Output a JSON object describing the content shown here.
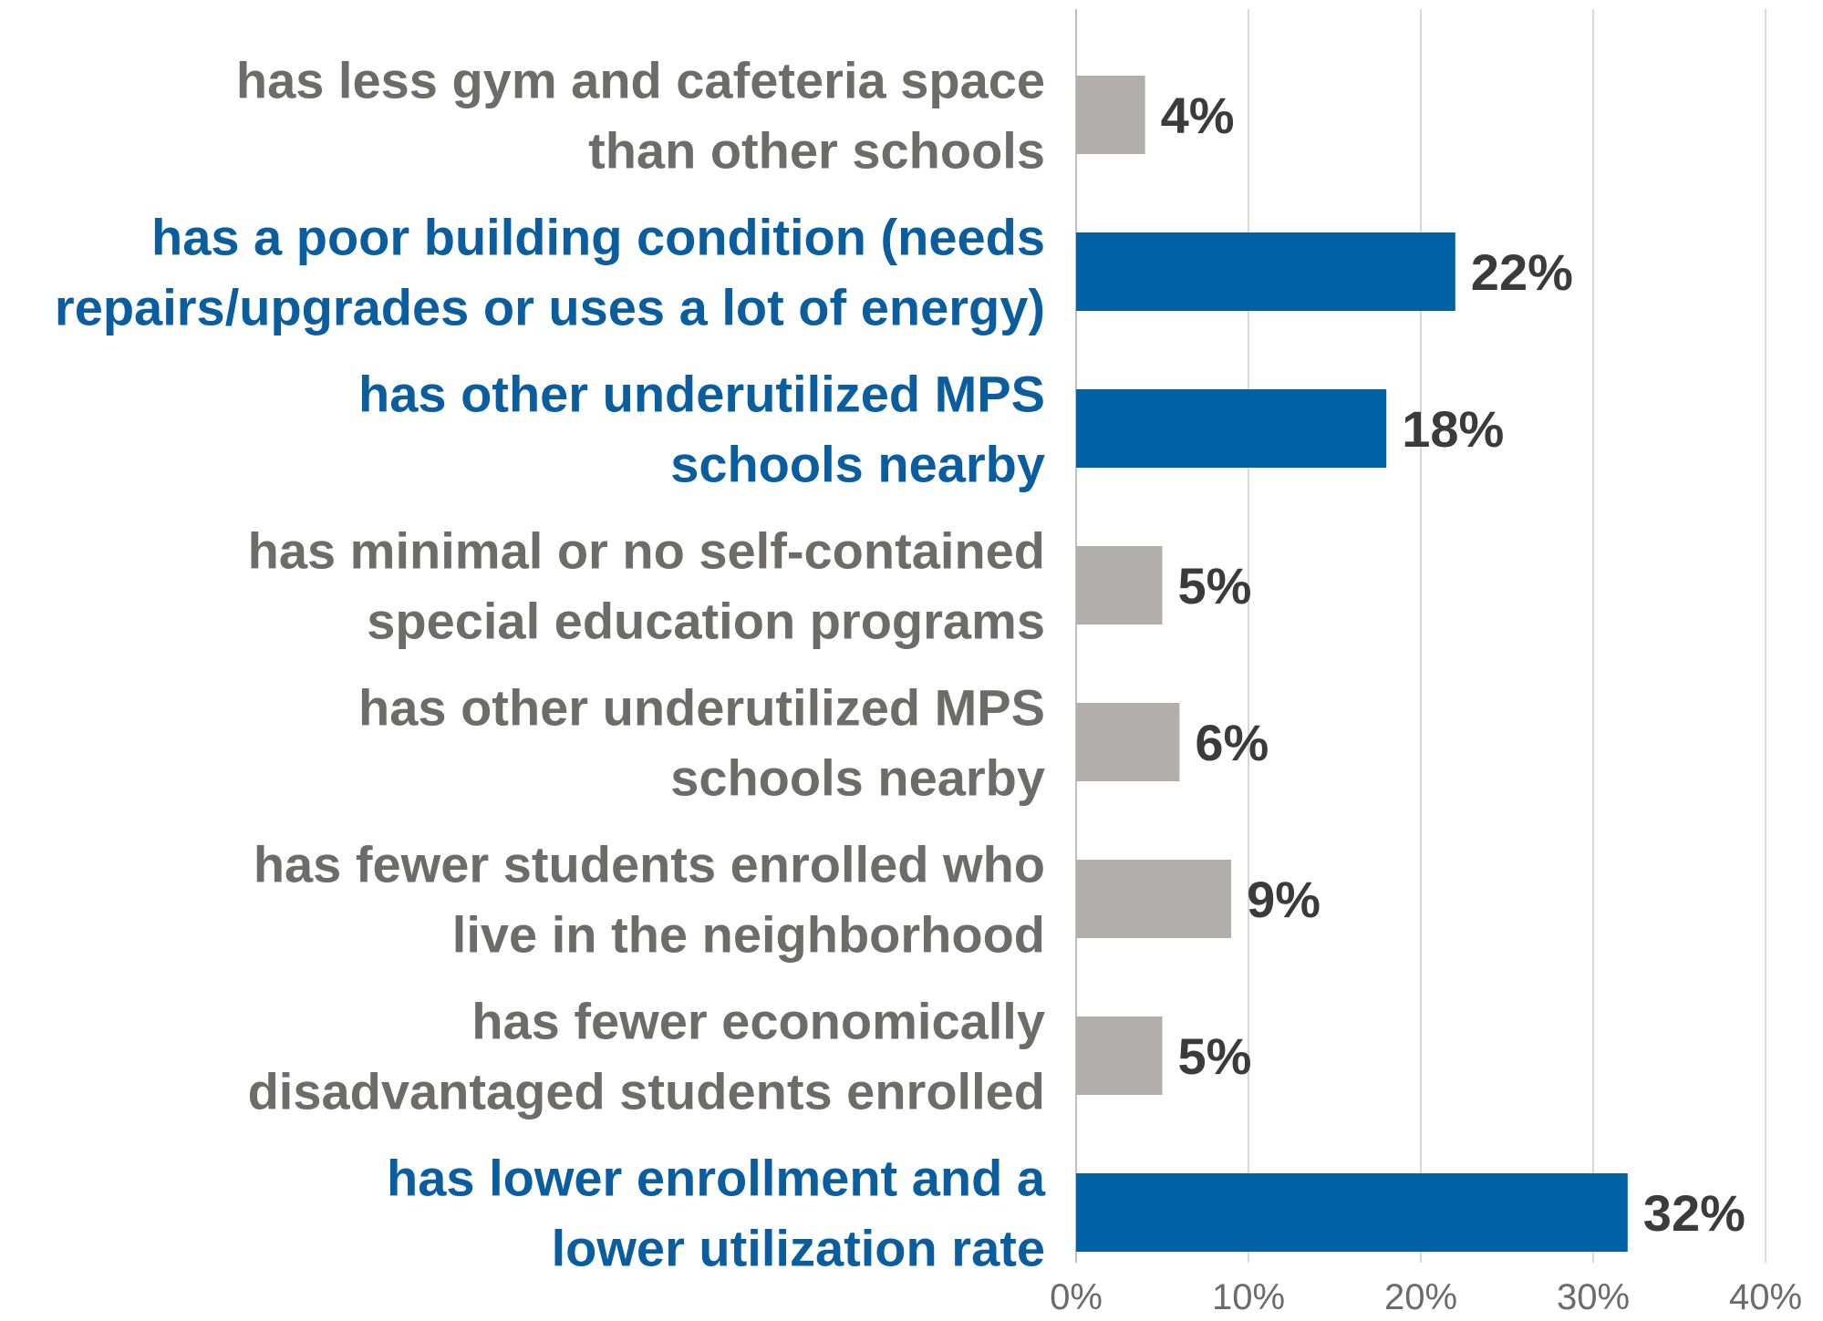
{
  "chart_data": {
    "type": "bar",
    "orientation": "horizontal",
    "categories": [
      [
        "has less gym and cafeteria space",
        "than other schools"
      ],
      [
        "has a poor building condition (needs",
        "repairs/upgrades or uses a lot of energy)"
      ],
      [
        "has other underutilized MPS",
        "schools nearby"
      ],
      [
        "has minimal or no self-contained",
        "special education programs"
      ],
      [
        "has other underutilized MPS",
        "schools nearby"
      ],
      [
        "has fewer students enrolled who",
        "live in the neighborhood"
      ],
      [
        "has fewer economically",
        "disadvantaged students enrolled"
      ],
      [
        "has lower enrollment and a",
        "lower utilization rate"
      ]
    ],
    "values": [
      4,
      22,
      18,
      5,
      6,
      9,
      5,
      32
    ],
    "value_labels": [
      "4%",
      "22%",
      "18%",
      "5%",
      "6%",
      "9%",
      "5%",
      "32%"
    ],
    "highlighted": [
      false,
      true,
      true,
      false,
      false,
      false,
      false,
      true
    ],
    "xlim": [
      0,
      40
    ],
    "xticks": [
      "0%",
      "10%",
      "20%",
      "30%",
      "40%"
    ],
    "grid": true,
    "colors": {
      "highlight_bar": "#0061a6",
      "highlight_text": "#0a5d9e",
      "normal_bar": "#b1aeac",
      "normal_text": "#6e6c6b"
    }
  }
}
